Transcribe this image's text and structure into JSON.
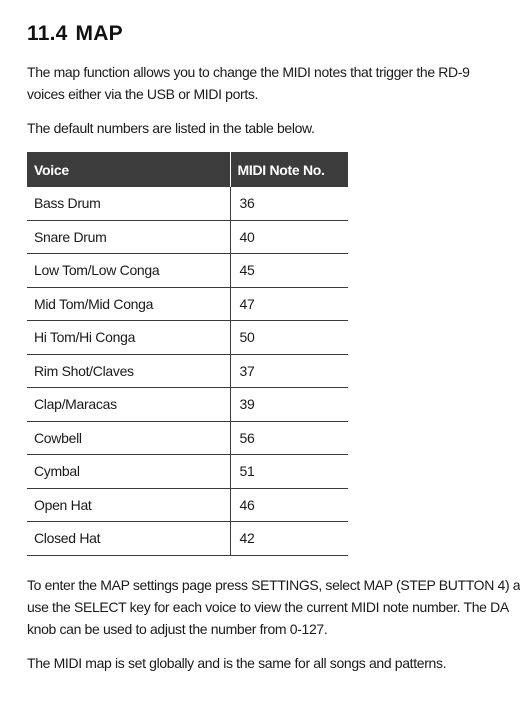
{
  "section": {
    "number": "11.4",
    "title": "MAP"
  },
  "intro": {
    "line1": "The map function allows you to change the MIDI notes that trigger the RD-9",
    "line2": "voices either via the USB or MIDI ports.",
    "defaults_note": "The default numbers are listed in the table below."
  },
  "table": {
    "headers": [
      "Voice",
      "MIDI Note No."
    ],
    "rows": [
      {
        "voice": "Bass Drum",
        "note": "36"
      },
      {
        "voice": "Snare Drum",
        "note": "40"
      },
      {
        "voice": "Low Tom/Low Conga",
        "note": "45"
      },
      {
        "voice": "Mid Tom/Mid Conga",
        "note": "47"
      },
      {
        "voice": "Hi Tom/Hi Conga",
        "note": "50"
      },
      {
        "voice": "Rim Shot/Claves",
        "note": "37"
      },
      {
        "voice": "Clap/Maracas",
        "note": "39"
      },
      {
        "voice": "Cowbell",
        "note": "56"
      },
      {
        "voice": "Cymbal",
        "note": "51"
      },
      {
        "voice": "Open Hat",
        "note": "46"
      },
      {
        "voice": "Closed Hat",
        "note": "42"
      }
    ]
  },
  "instructions": {
    "line1": "To enter the MAP settings page press SETTINGS, select MAP (STEP BUTTON 4) a",
    "line2": "use the SELECT key for each voice to view the current MIDI note number. The DA",
    "line3": "knob can be used to adjust the number from 0-127."
  },
  "footer_note": "The MIDI map is set globally and is the same for all songs and patterns.",
  "colors": {
    "header_bg": "#3c3c3c",
    "rule": "#3c3c3c",
    "text": "#1a1a1a"
  }
}
